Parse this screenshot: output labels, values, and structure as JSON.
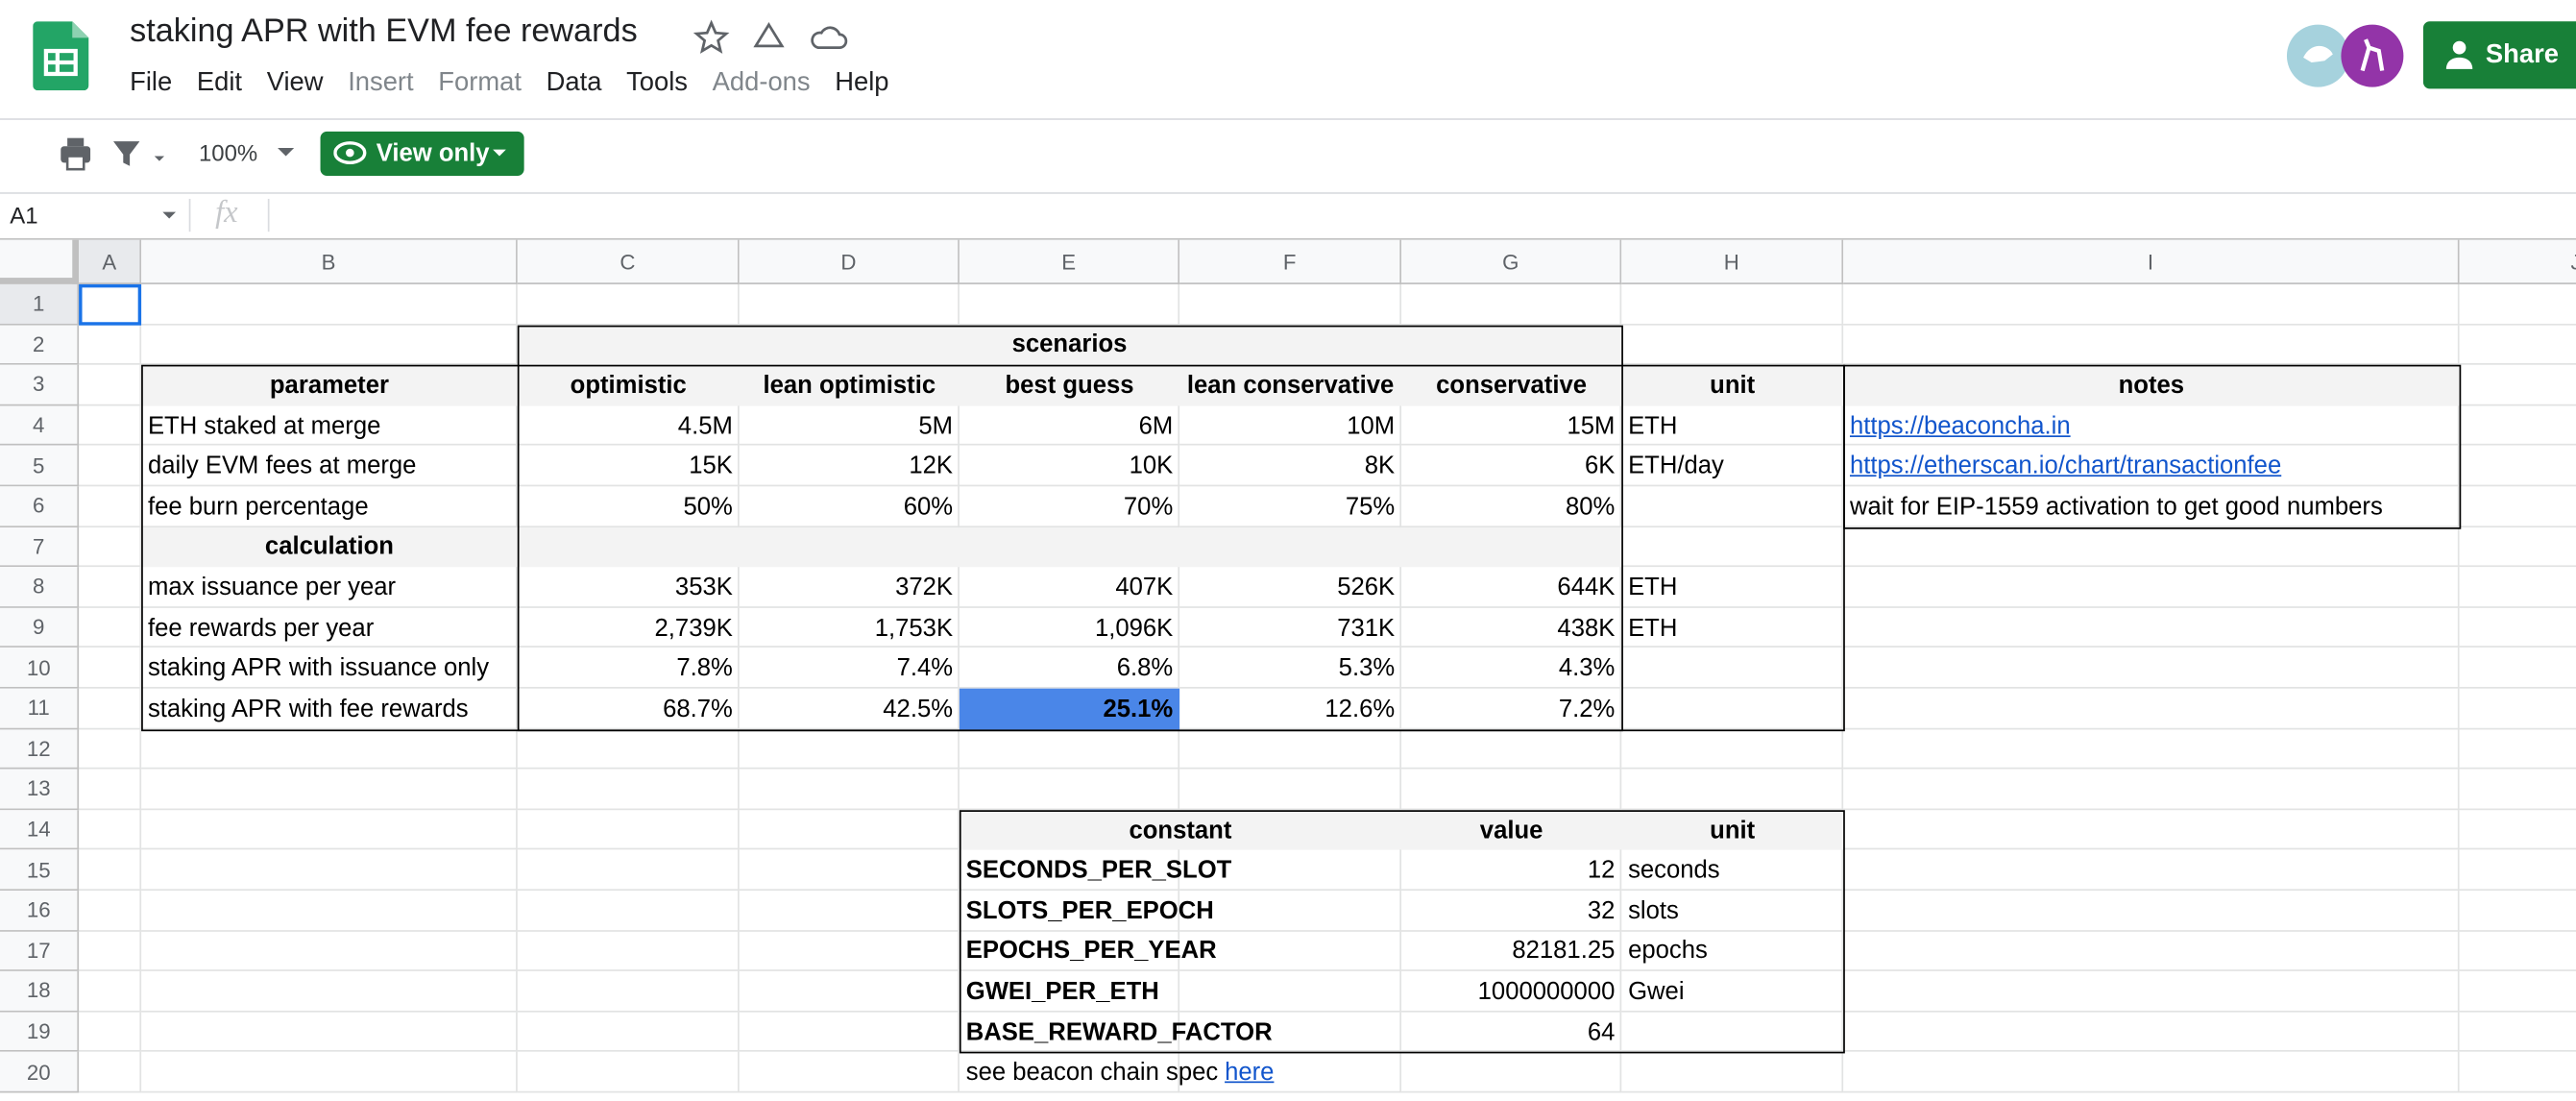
{
  "header": {
    "title": "staking APR with EVM fee rewards",
    "menu": [
      "File",
      "Edit",
      "View",
      "Insert",
      "Format",
      "Data",
      "Tools",
      "Add-ons",
      "Help"
    ],
    "share": "Share"
  },
  "toolbar": {
    "zoom": "100%",
    "mode": "View only"
  },
  "formula_bar": {
    "cell": "A1",
    "fx": "fx"
  },
  "sheet": {
    "columns": [
      "A",
      "B",
      "C",
      "D",
      "E",
      "F",
      "G",
      "H",
      "I",
      "J"
    ],
    "rows": [
      1,
      2,
      3,
      4,
      5,
      6,
      7,
      8,
      9,
      10,
      11,
      12,
      13,
      14,
      15,
      16,
      17,
      18,
      19,
      20
    ]
  },
  "main_table": {
    "group_header": "scenarios",
    "headers": [
      "parameter",
      "optimistic",
      "lean optimistic",
      "best guess",
      "lean conservative",
      "conservative",
      "unit",
      "notes"
    ],
    "input_rows": [
      {
        "parameter": "ETH staked at merge",
        "values": [
          "4.5M",
          "5M",
          "6M",
          "10M",
          "15M"
        ],
        "unit": "ETH",
        "note": "https://beaconcha.in"
      },
      {
        "parameter": "daily EVM fees at merge",
        "values": [
          "15K",
          "12K",
          "10K",
          "8K",
          "6K"
        ],
        "unit": "ETH/day",
        "note": "https://etherscan.io/chart/transactionfee"
      },
      {
        "parameter": "fee burn percentage",
        "values": [
          "50%",
          "60%",
          "70%",
          "75%",
          "80%"
        ],
        "note": "wait for EIP-1559 activation to get good numbers"
      }
    ],
    "section": "calculation",
    "calc_rows": [
      {
        "parameter": "max issuance per year",
        "values": [
          "353K",
          "372K",
          "407K",
          "526K",
          "644K"
        ],
        "unit": "ETH"
      },
      {
        "parameter": "fee rewards per year",
        "values": [
          "2,739K",
          "1,753K",
          "1,096K",
          "731K",
          "438K"
        ],
        "unit": "ETH"
      },
      {
        "parameter": "staking APR with issuance only",
        "values": [
          "7.8%",
          "7.4%",
          "6.8%",
          "5.3%",
          "4.3%"
        ]
      },
      {
        "parameter": "staking APR with fee rewards",
        "values": [
          "68.7%",
          "42.5%",
          "25.1%",
          "12.6%",
          "7.2%"
        ]
      }
    ]
  },
  "constants_table": {
    "headers": [
      "constant",
      "value",
      "unit"
    ],
    "rows": [
      {
        "name": "SECONDS_PER_SLOT",
        "value": 12,
        "unit": "seconds"
      },
      {
        "name": "SLOTS_PER_EPOCH",
        "value": 32,
        "unit": "slots"
      },
      {
        "name": "EPOCHS_PER_YEAR",
        "value": 82181.25,
        "unit": "epochs"
      },
      {
        "name": "GWEI_PER_ETH",
        "value": 1000000000,
        "unit": "Gwei"
      },
      {
        "name": "BASE_REWARD_FACTOR",
        "value": 64
      }
    ],
    "footnote": {
      "text": "see beacon chain spec",
      "link": "here"
    }
  }
}
